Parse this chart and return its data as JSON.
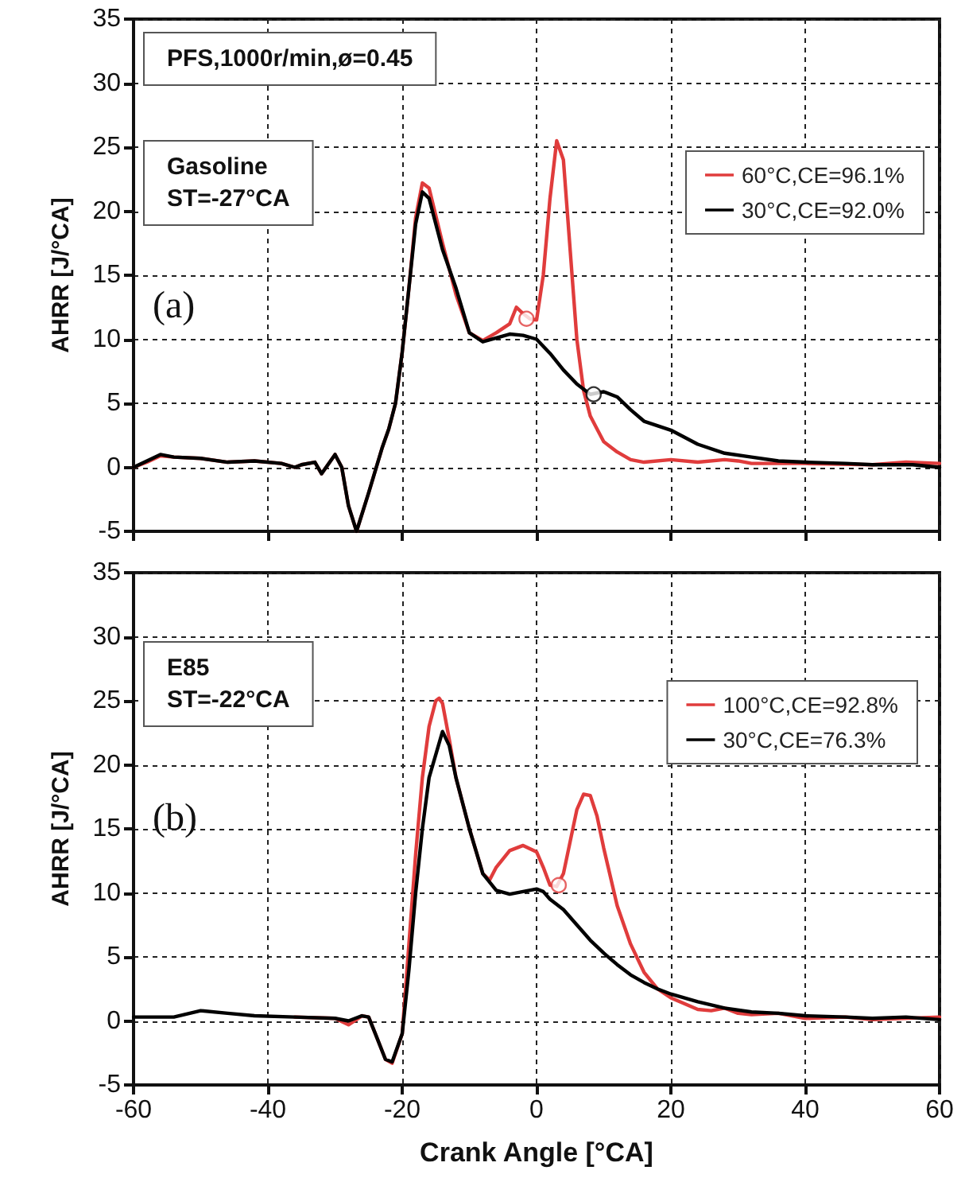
{
  "chart_data": [
    {
      "type": "line",
      "ylabel": "AHRR [J/°CA]",
      "annotations": [
        "PFS,1000r/min,ø=0.45",
        "Gasoline\nST=-27°CA",
        "(a)"
      ],
      "series": [
        {
          "name": "60°C,CE=96.1%",
          "color": "#e03c3c",
          "x": [
            -60,
            -58,
            -56,
            -54,
            -50,
            -46,
            -42,
            -38,
            -36,
            -35,
            -33,
            -32,
            -30,
            -29,
            -28,
            -26.8,
            -25,
            -23,
            -22,
            -21,
            -20,
            -19,
            -18,
            -17,
            -16,
            -14,
            -12,
            -10,
            -8,
            -6,
            -4,
            -3,
            -2,
            -1,
            0,
            1,
            2,
            3,
            4,
            5,
            6,
            7,
            8,
            9,
            10,
            12,
            14,
            16,
            20,
            24,
            28,
            30,
            32,
            40,
            50,
            55,
            60
          ],
          "values": [
            0,
            0.4,
            0.9,
            0.8,
            0.7,
            0.4,
            0.5,
            0.3,
            0,
            0.2,
            0.4,
            -0.5,
            1,
            0,
            -3,
            -5,
            -2,
            1.5,
            3,
            5,
            9,
            14,
            19.5,
            22.2,
            21.8,
            17.5,
            13.5,
            10.5,
            9.9,
            10.5,
            11.2,
            12.5,
            12,
            11.6,
            11.5,
            15,
            21,
            25.5,
            24,
            17,
            10,
            6,
            4,
            3,
            2,
            1.2,
            0.6,
            0.4,
            0.6,
            0.4,
            0.6,
            0.5,
            0.3,
            0.3,
            0.2,
            0.4,
            0.3
          ]
        },
        {
          "name": "30°C,CE=92.0%",
          "color": "#000000",
          "x": [
            -60,
            -58,
            -56,
            -54,
            -50,
            -46,
            -42,
            -38,
            -36,
            -35,
            -33,
            -32,
            -30,
            -29,
            -28,
            -26.8,
            -25,
            -23,
            -22,
            -21,
            -20,
            -19,
            -18,
            -17,
            -16,
            -14,
            -12,
            -10,
            -8,
            -6,
            -4,
            -2,
            0,
            2,
            4,
            6,
            8,
            10,
            12,
            14,
            16,
            20,
            24,
            28,
            32,
            36,
            40,
            46,
            50,
            56,
            60
          ],
          "values": [
            0,
            0.5,
            1,
            0.8,
            0.7,
            0.4,
            0.5,
            0.3,
            0,
            0.2,
            0.4,
            -0.5,
            1,
            0,
            -3,
            -5,
            -2,
            1.5,
            3,
            5,
            9,
            14,
            19,
            21.5,
            21,
            17,
            14,
            10.5,
            9.8,
            10.1,
            10.4,
            10.3,
            10,
            8.9,
            7.6,
            6.5,
            5.7,
            5.9,
            5.5,
            4.5,
            3.6,
            2.9,
            1.8,
            1.1,
            0.8,
            0.5,
            0.4,
            0.3,
            0.2,
            0.2,
            0
          ]
        },
        {
          "type": "scatter",
          "color": "#e03c3c",
          "marker": "circle",
          "x": [
            -1.5
          ],
          "values": [
            11.6
          ]
        },
        {
          "type": "scatter",
          "color": "#000000",
          "marker": "circle",
          "x": [
            8.5
          ],
          "values": [
            5.7
          ]
        }
      ],
      "xlim": [
        -60,
        60
      ],
      "xticks": [
        -60,
        -40,
        -20,
        0,
        20,
        40,
        60
      ],
      "ylim": [
        -5,
        35
      ],
      "yticks": [
        -5,
        0,
        5,
        10,
        15,
        20,
        25,
        30,
        35
      ],
      "tick_labels": "y",
      "grid": true,
      "legend": "top right",
      "marker": "none",
      "line_style": "solid"
    },
    {
      "type": "line",
      "xlabel": "Crank Angle [°CA]",
      "ylabel": "AHRR [J/°CA]",
      "annotations": [
        "E85\nST=-22°CA",
        "(b)"
      ],
      "series": [
        {
          "name": "100°C,CE=92.8%",
          "color": "#e03c3c",
          "x": [
            -36,
            -30,
            -28,
            -26,
            -25,
            -24,
            -22.5,
            -21.5,
            -20,
            -19,
            -18,
            -17,
            -16,
            -15,
            -14.5,
            -14,
            -13,
            -12,
            -10,
            -8,
            -7,
            -6,
            -4,
            -2,
            0,
            1,
            2,
            3,
            4,
            5,
            6,
            7,
            8,
            9,
            10,
            12,
            14,
            16,
            18,
            20,
            24,
            26,
            28,
            30,
            32,
            36,
            40,
            46,
            50,
            60
          ],
          "values": [
            0.3,
            0.2,
            -0.3,
            0.4,
            0.3,
            -1,
            -3,
            -3.3,
            -1,
            6,
            13,
            19,
            23,
            25,
            25.2,
            24.8,
            22,
            19,
            15,
            11.5,
            11,
            12,
            13.3,
            13.7,
            13.2,
            12,
            10.6,
            10.5,
            11.5,
            14,
            16.5,
            17.7,
            17.6,
            16,
            13.5,
            9,
            6,
            3.8,
            2.5,
            1.8,
            0.9,
            0.8,
            1,
            0.6,
            0.5,
            0.6,
            0.2,
            0.3,
            0.1,
            0.3
          ]
        },
        {
          "name": "30°C,CE=76.3%",
          "color": "#000000",
          "x": [
            -60,
            -56,
            -54,
            -50,
            -46,
            -42,
            -36,
            -30,
            -28,
            -26,
            -25,
            -24,
            -22.5,
            -21.5,
            -20,
            -19,
            -18,
            -17,
            -16,
            -14,
            -13,
            -12,
            -10,
            -8,
            -6,
            -4,
            -2,
            0,
            1,
            2,
            4,
            6,
            8,
            10,
            12,
            14,
            16,
            18,
            20,
            24,
            28,
            32,
            36,
            40,
            46,
            50,
            55,
            60
          ],
          "values": [
            0.3,
            0.3,
            0.3,
            0.8,
            0.6,
            0.4,
            0.3,
            0.2,
            0,
            0.4,
            0.3,
            -1,
            -3,
            -3.2,
            -1,
            4,
            10,
            15,
            19,
            22.6,
            21.5,
            19,
            15,
            11.5,
            10.2,
            9.9,
            10.1,
            10.3,
            10.1,
            9.5,
            8.7,
            7.5,
            6.3,
            5.3,
            4.4,
            3.6,
            3,
            2.5,
            2.1,
            1.5,
            1,
            0.7,
            0.6,
            0.4,
            0.3,
            0.2,
            0.3,
            0.1
          ]
        },
        {
          "type": "scatter",
          "color": "#e03c3c",
          "marker": "circle",
          "x": [
            3.3
          ],
          "values": [
            10.6
          ]
        }
      ],
      "xlim": [
        -60,
        60
      ],
      "xticks": [
        -60,
        -40,
        -20,
        0,
        20,
        40,
        60
      ],
      "ylim": [
        -5,
        35
      ],
      "yticks": [
        -5,
        0,
        5,
        10,
        15,
        20,
        25,
        30,
        35
      ],
      "grid": true,
      "legend": "top right",
      "marker": "none",
      "line_style": "solid"
    }
  ]
}
